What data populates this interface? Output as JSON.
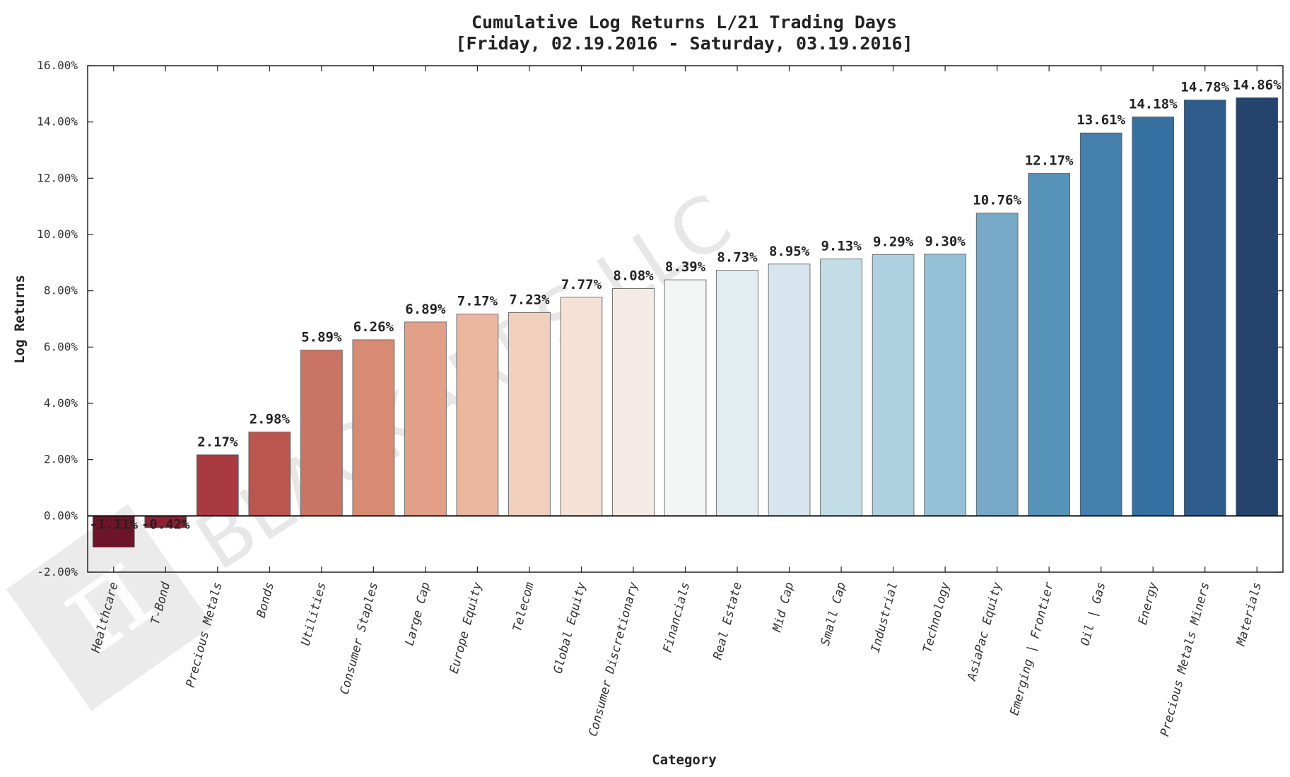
{
  "chart_data": {
    "type": "bar",
    "title": "Cumulative Log Returns L/21 Trading Days",
    "subtitle": "[Friday, 02.19.2016 - Saturday, 03.19.2016]",
    "xlabel": "Category",
    "ylabel": "Log Returns",
    "ylim": [
      -2,
      16
    ],
    "yticks": [
      -2,
      0,
      2,
      4,
      6,
      8,
      10,
      12,
      14,
      16
    ],
    "ytick_labels": [
      "-2.00%",
      "0.00%",
      "2.00%",
      "4.00%",
      "6.00%",
      "8.00%",
      "10.00%",
      "12.00%",
      "14.00%",
      "16.00%"
    ],
    "categories": [
      "Healthcare",
      "T-Bond",
      "Precious Metals",
      "Bonds",
      "Utilities",
      "Consumer Staples",
      "Large Cap",
      "Europe Equity",
      "Telecom",
      "Global Equity",
      "Consumer Discretionary",
      "Financials",
      "Real Estate",
      "Mid Cap",
      "Small Cap",
      "Industrial",
      "Technology",
      "AsiaPac Equity",
      "Emerging | Frontier",
      "Oil | Gas",
      "Energy",
      "Precious Metals Miners",
      "Materials"
    ],
    "values": [
      -1.11,
      -0.42,
      2.17,
      2.98,
      5.89,
      6.26,
      6.89,
      7.17,
      7.23,
      7.77,
      8.08,
      8.39,
      8.73,
      8.95,
      9.13,
      9.29,
      9.3,
      10.76,
      12.17,
      13.61,
      14.18,
      14.78,
      14.86
    ],
    "value_labels": [
      "-1.11%",
      "-0.42%",
      "2.17%",
      "2.98%",
      "5.89%",
      "6.26%",
      "6.89%",
      "7.17%",
      "7.23%",
      "7.77%",
      "8.08%",
      "8.39%",
      "8.73%",
      "8.95%",
      "9.13%",
      "9.29%",
      "9.30%",
      "10.76%",
      "12.17%",
      "13.61%",
      "14.18%",
      "14.78%",
      "14.86%"
    ],
    "colors": [
      "#6e1428",
      "#8f1f33",
      "#a93a42",
      "#bb5550",
      "#c97464",
      "#d88b73",
      "#e2a088",
      "#ebb79f",
      "#f1cfbd",
      "#f6e1d6",
      "#f5ebe6",
      "#f4f5f5",
      "#e4edf1",
      "#d7e6ee",
      "#c3dde7",
      "#afd0e0",
      "#94c1d6",
      "#75a9c7",
      "#5792b8",
      "#4480ab",
      "#3670a0",
      "#2e5d8c",
      "#24446e"
    ],
    "grid": false
  },
  "watermark": {
    "text": "BLACKARBS LLC",
    "logo_glyph": "π"
  }
}
